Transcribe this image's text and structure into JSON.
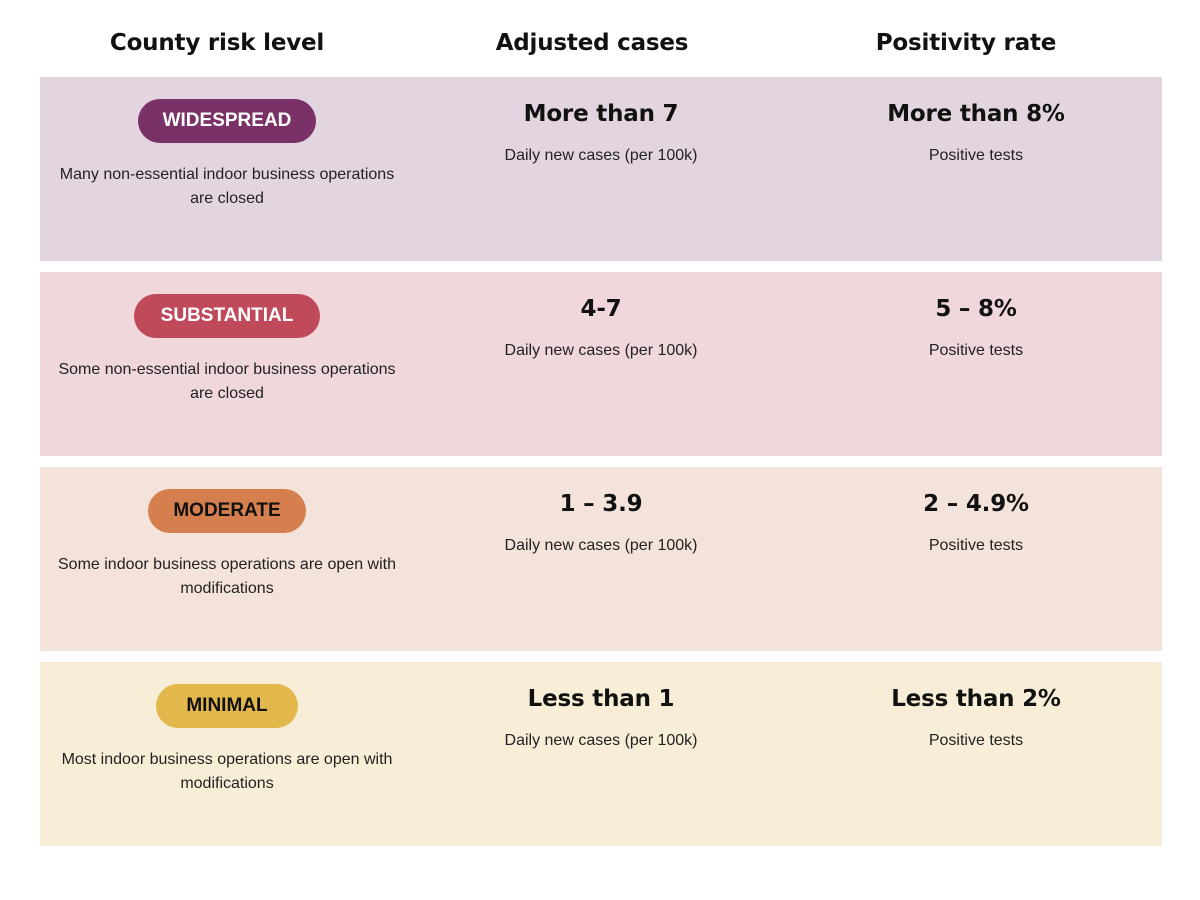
{
  "headers": {
    "risk": "County risk level",
    "cases": "Adjusted cases",
    "positivity": "Positivity rate"
  },
  "tiers": [
    {
      "badge": "WIDESPREAD",
      "description": "Many non-essential indoor business operations are closed",
      "cases": "More than 7",
      "cases_sub": "Daily new cases (per 100k)",
      "positivity": "More than 8%",
      "positivity_sub": "Positive tests",
      "row_color": "#e3d5e0",
      "badge_color": "#7a3167",
      "badge_text_color": "#ffffff"
    },
    {
      "badge": "SUBSTANTIAL",
      "description": "Some non-essential indoor business operations are closed",
      "cases": "4-7",
      "cases_sub": "Daily new cases (per 100k)",
      "positivity": "5 – 8%",
      "positivity_sub": "Positive tests",
      "row_color": "#efd7dc",
      "badge_color": "#c04a5b",
      "badge_text_color": "#ffffff"
    },
    {
      "badge": "MODERATE",
      "description": "Some indoor business operations are open with modifications",
      "cases": "1 – 3.9",
      "cases_sub": "Daily new cases (per 100k)",
      "positivity": "2 – 4.9%",
      "positivity_sub": "Positive tests",
      "row_color": "#f3e3da",
      "badge_color": "#d57f4f",
      "badge_text_color": "#111111"
    },
    {
      "badge": "MINIMAL",
      "description": "Most indoor business operations are open with modifications",
      "cases": "Less than 1",
      "cases_sub": "Daily new cases (per 100k)",
      "positivity": "Less than 2%",
      "positivity_sub": "Positive tests",
      "row_color": "#f8eed7",
      "badge_color": "#e2b84c",
      "badge_text_color": "#111111"
    }
  ]
}
